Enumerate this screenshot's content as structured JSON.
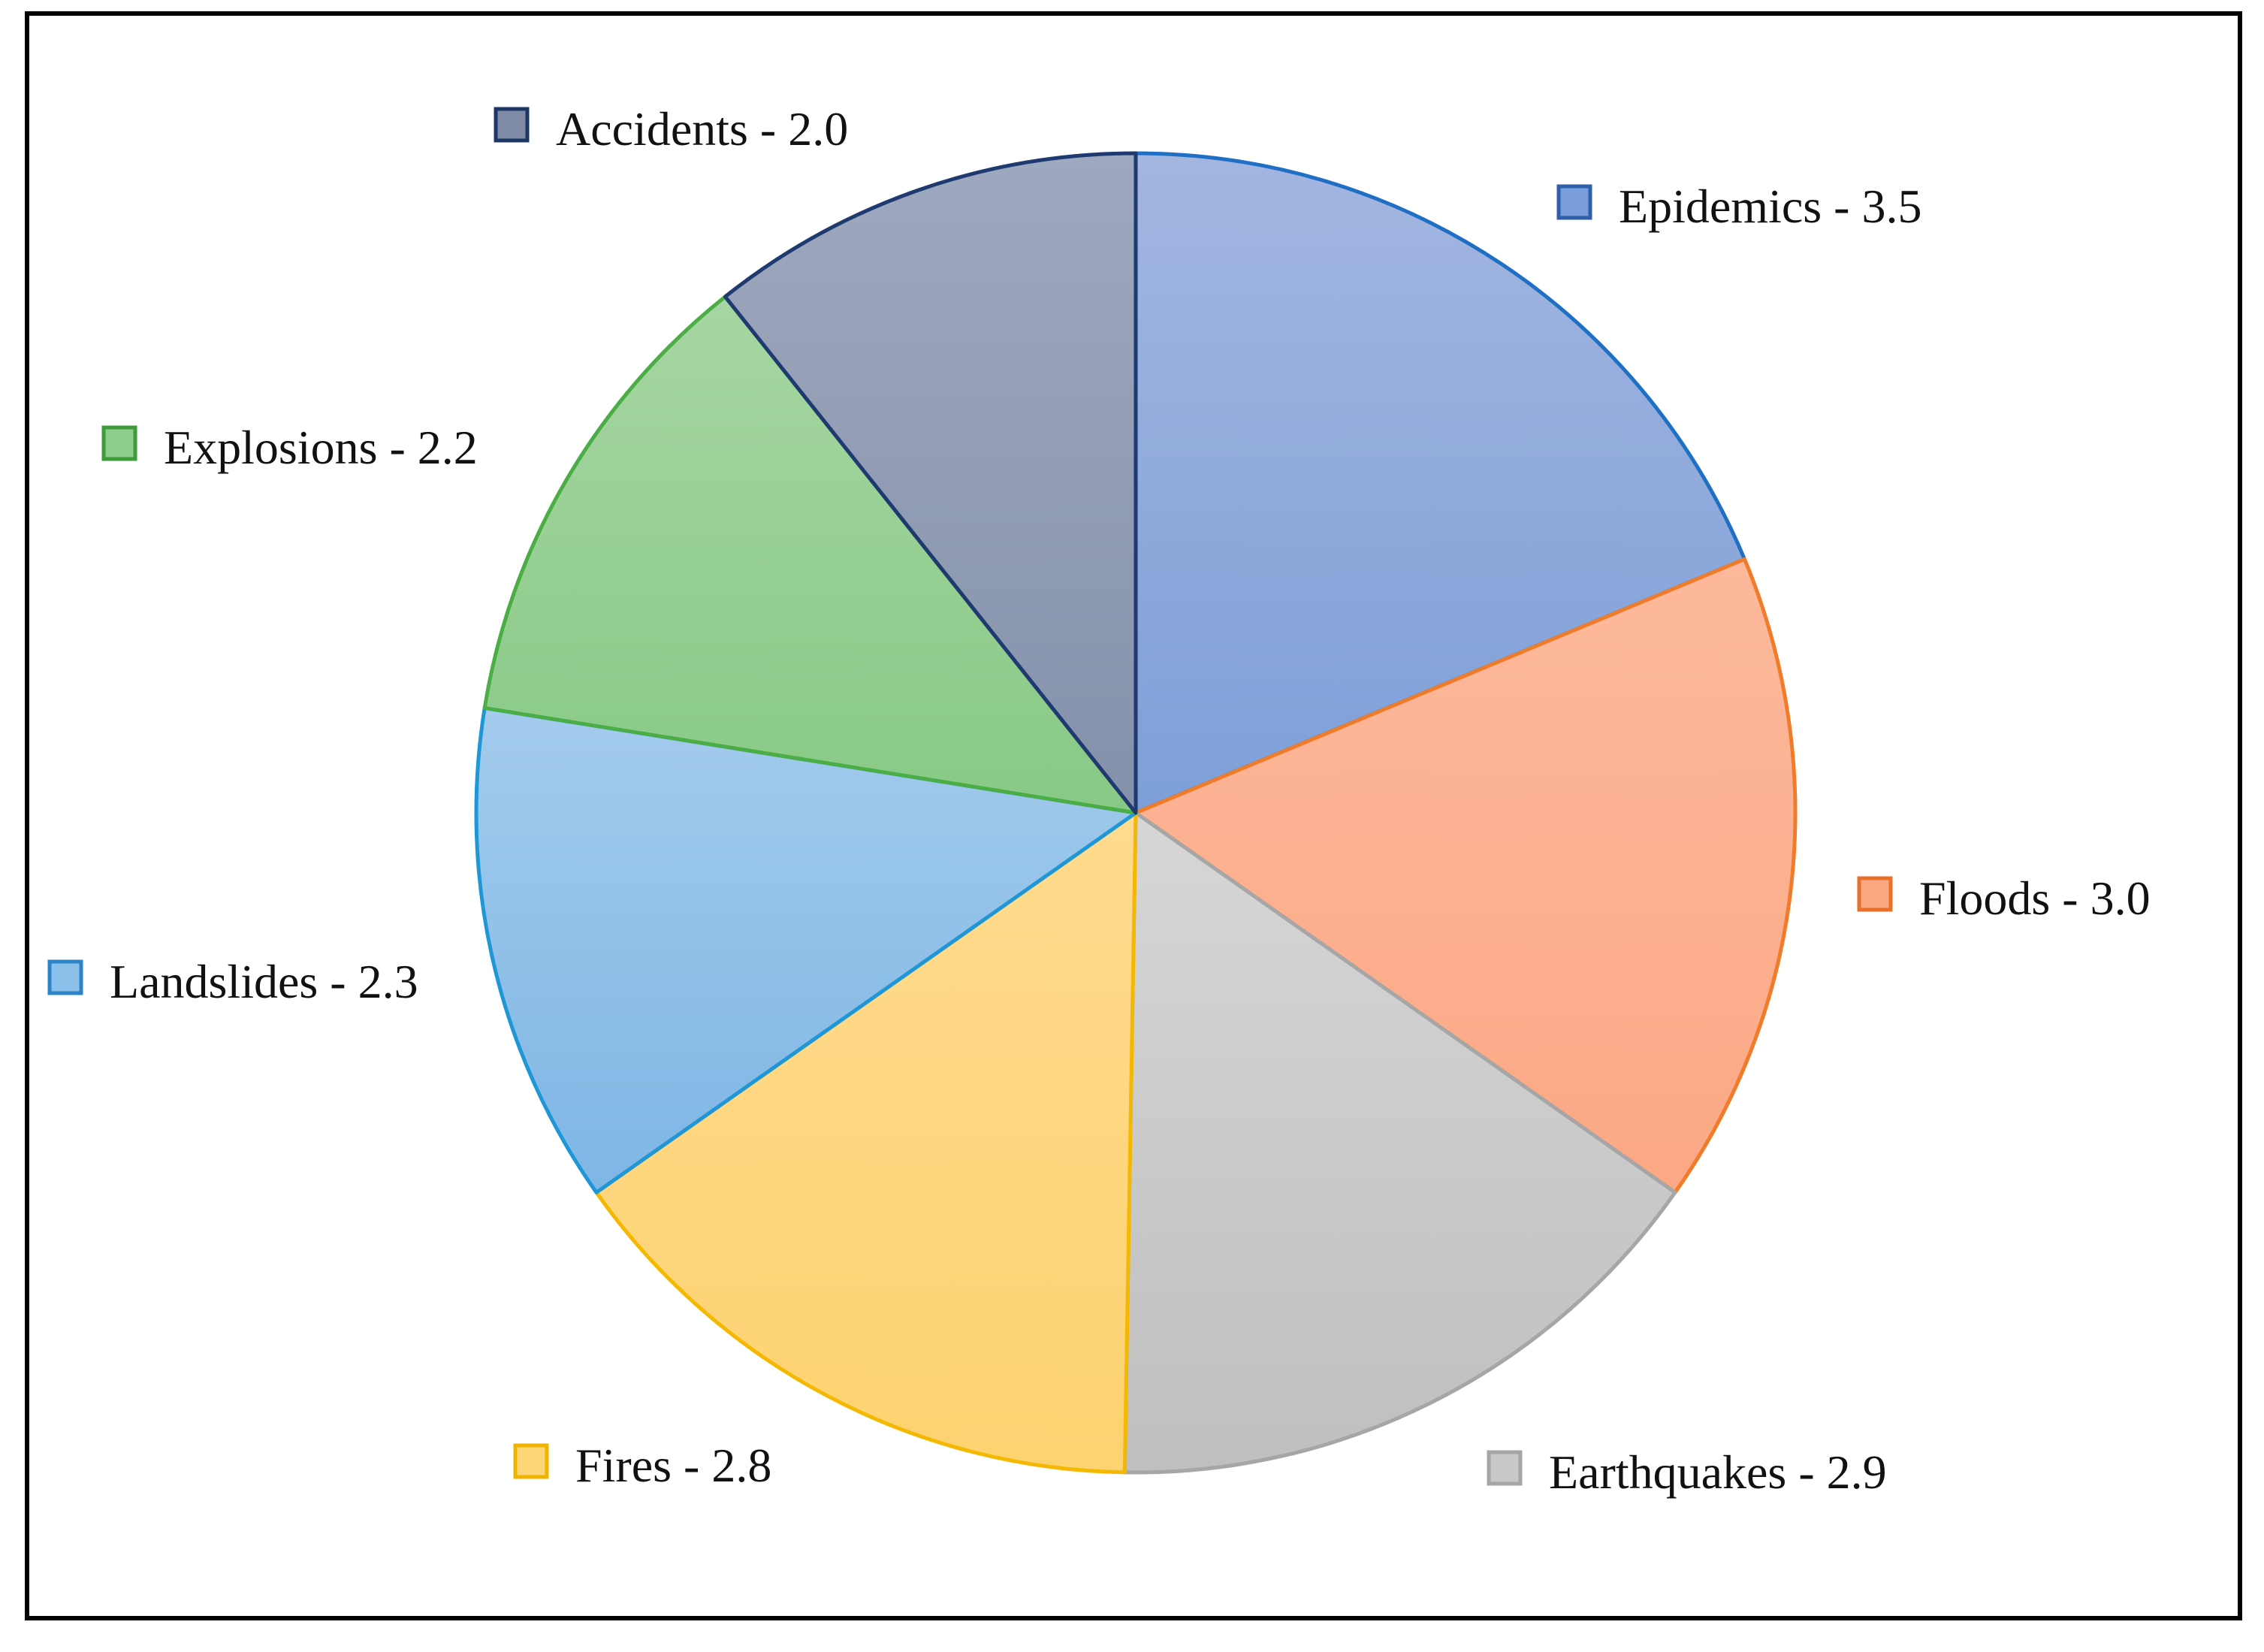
{
  "chart_data": {
    "type": "pie",
    "slices": [
      {
        "label": "Epidemics - 3.5",
        "value": 3.5,
        "color": "#8eaadb",
        "color_light": "#a3b6e0",
        "color_dark": "#7d9fd8",
        "stroke": "#1f6fc5",
        "swatch": "#7a9edb",
        "swatch_stroke": "#2e5fa8",
        "legend_pos": "right-top"
      },
      {
        "label": "Floods - 3.0",
        "value": 3.0,
        "color": "#fcb08f",
        "color_light": "#fdb99c",
        "color_dark": "#fba884",
        "stroke": "#f07c2a",
        "swatch": "#f9a882",
        "swatch_stroke": "#e8702a",
        "legend_pos": "right"
      },
      {
        "label": "Earthquakes  - 2.9",
        "value": 2.9,
        "color": "#c9c9c9",
        "color_light": "#d6d6d6",
        "color_dark": "#bfbfbf",
        "stroke": "#a6a6a6",
        "swatch": "#c8c8c8",
        "swatch_stroke": "#a5a5a5",
        "legend_pos": "bottom-right"
      },
      {
        "label": "Fires - 2.8",
        "value": 2.8,
        "color": "#fdd67e",
        "color_light": "#fedb8f",
        "color_dark": "#fdd270",
        "stroke": "#f5b800",
        "swatch": "#fdd678",
        "swatch_stroke": "#f0b400",
        "legend_pos": "bottom-left"
      },
      {
        "label": "Landslides - 2.3",
        "value": 2.3,
        "color": "#8ebfe8",
        "color_light": "#a3cbec",
        "color_dark": "#7eb6e5",
        "stroke": "#1f97d6",
        "swatch": "#8ac0ea",
        "swatch_stroke": "#2a84c7",
        "legend_pos": "left"
      },
      {
        "label": "Explosions - 2.2",
        "value": 2.2,
        "color": "#98d095",
        "color_light": "#a6d6a2",
        "color_dark": "#88c985",
        "stroke": "#4aad45",
        "swatch": "#8fcd8a",
        "swatch_stroke": "#3e9b3a",
        "legend_pos": "left-top"
      },
      {
        "label": "Accidents - 2.0",
        "value": 2.0,
        "color": "#95a0b8",
        "color_light": "#9ea8be",
        "color_dark": "#8591ab",
        "stroke": "#1e3a70",
        "swatch": "#7e8aa6",
        "swatch_stroke": "#1e3666",
        "legend_pos": "top"
      }
    ],
    "start_angle_deg": 0,
    "direction": "clockwise",
    "legend": "labels-around-pie"
  }
}
